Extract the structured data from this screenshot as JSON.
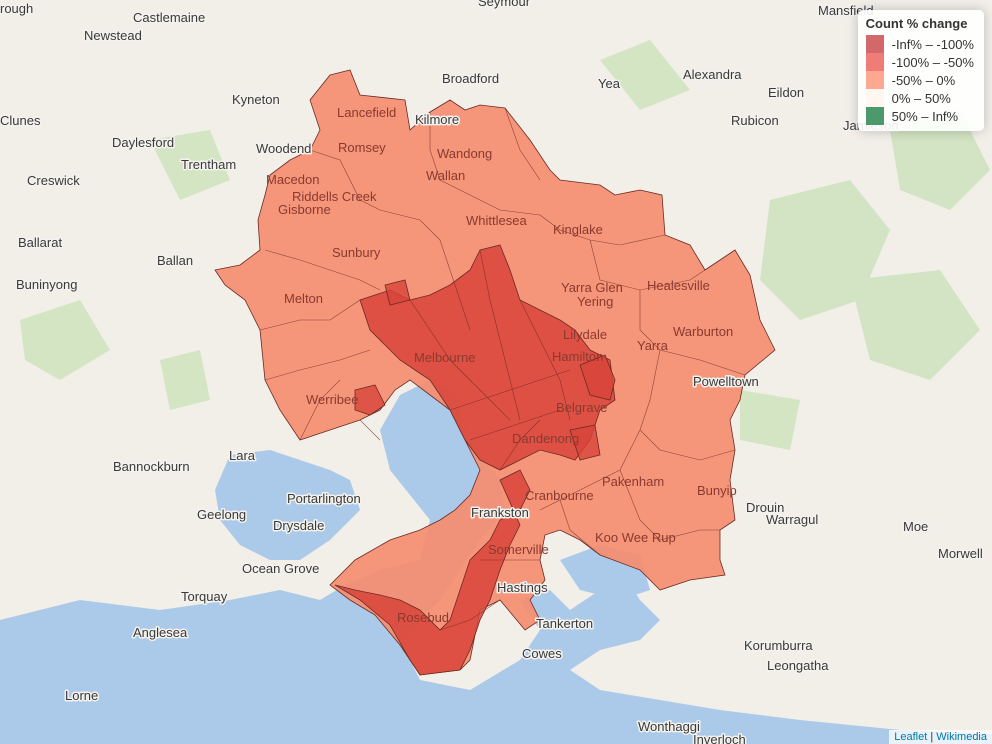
{
  "legend": {
    "title": "Count % change",
    "items": [
      {
        "label": "-Inf% – -100%",
        "color": "#c0282c"
      },
      {
        "label": "-100% – -50%",
        "color": "#e8453c"
      },
      {
        "label": "-50% – 0%",
        "color": "#fc8464"
      },
      {
        "label": "0% – 50%",
        "color": "#fff3ea"
      },
      {
        "label": "50% – Inf%",
        "color": "#006d2c"
      }
    ]
  },
  "attribution": {
    "leaflet": "Leaflet",
    "separator": "|",
    "source": "Wikimedia"
  },
  "colors": {
    "water": "#abc9e8",
    "land": "#f2efe9",
    "green": "#cfe3bf",
    "border_dark": "#6b2a24"
  },
  "places": [
    "rough",
    "Castlemaine",
    "Seymour",
    "Mansfield",
    "Newstead",
    "Broadford",
    "Alexandra",
    "Yea",
    "Kyneton",
    "Eildon",
    "Lancefield",
    "Kilmore",
    "Clunes",
    "Daylesford",
    "Woodend",
    "Romsey",
    "Wandong",
    "Rubicon",
    "Jamieson",
    "Trentham",
    "Macedon",
    "Wallan",
    "Creswick",
    "Riddells Creek",
    "Gisborne",
    "Whittlesea",
    "Kinglake",
    "Ballarat",
    "Sunbury",
    "Ballan",
    "Buninyong",
    "Yarra Glen",
    "Yering",
    "Healesville",
    "Warburton",
    "Melton",
    "Lilydale",
    "Yarra",
    "Melbourne",
    "Hamilton",
    "Powelltown",
    "Werribee",
    "Belgrave",
    "Lara",
    "Dandenong",
    "Bannockburn",
    "Pakenham",
    "Bunyip",
    "Portarlington",
    "Cranbourne",
    "Drouin",
    "Geelong",
    "Drysdale",
    "Frankston",
    "Warragul",
    "Moe",
    "Morwell",
    "Koo Wee Rup",
    "Somerville",
    "Ocean Grove",
    "Torquay",
    "Hastings",
    "Rosebud",
    "Tankerton",
    "Anglesea",
    "Cowes",
    "Korumburra",
    "Leongatha",
    "Lorne",
    "Wonthaggi",
    "Inverloch"
  ]
}
